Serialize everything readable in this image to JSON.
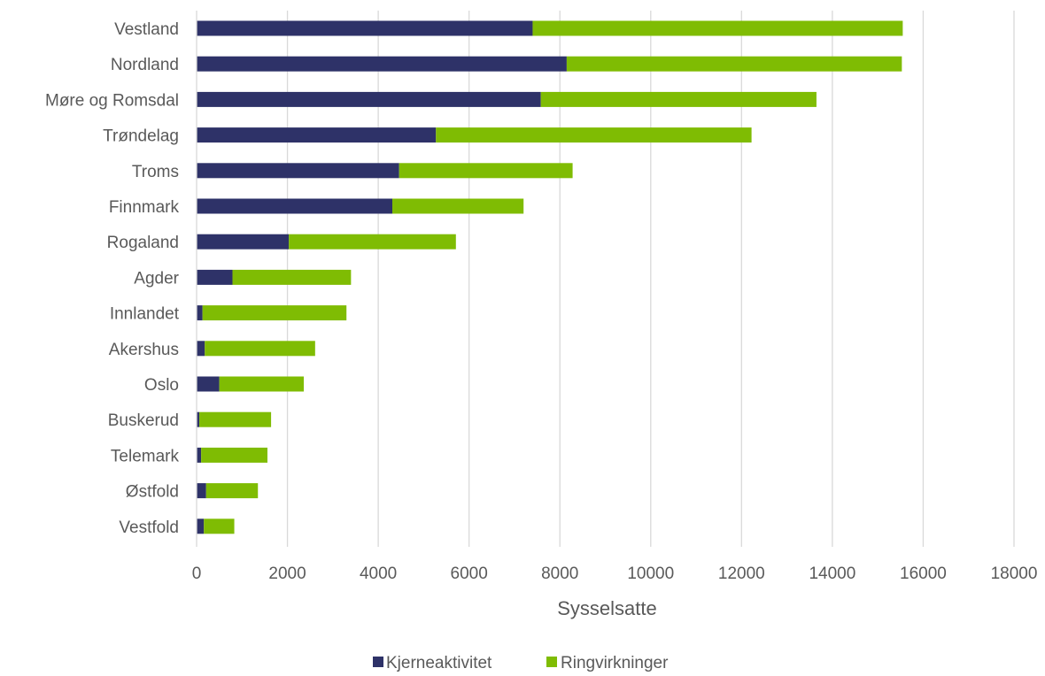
{
  "chart_data": {
    "type": "bar",
    "orientation": "horizontal",
    "stacked": true,
    "categories": [
      "Vestland",
      "Nordland",
      "Møre og Romsdal",
      "Trøndelag",
      "Troms",
      "Finnmark",
      "Rogaland",
      "Agder",
      "Innlandet",
      "Akershus",
      "Oslo",
      "Buskerud",
      "Telemark",
      "Østfold",
      "Vestfold"
    ],
    "series": [
      {
        "name": "Kjerneaktivitet",
        "color": "#2e3268",
        "values": [
          7400,
          8150,
          7580,
          5270,
          4460,
          4310,
          2030,
          790,
          130,
          180,
          500,
          60,
          100,
          210,
          160
        ]
      },
      {
        "name": "Ringvirkninger",
        "color": "#7fbc03",
        "values": [
          8150,
          7380,
          6070,
          6950,
          3820,
          2890,
          3680,
          2610,
          3170,
          2430,
          1860,
          1580,
          1460,
          1140,
          670
        ]
      }
    ],
    "xlabel": "Sysselsatte",
    "xlim": [
      0,
      18000
    ],
    "xticks": [
      0,
      2000,
      4000,
      6000,
      8000,
      10000,
      12000,
      14000,
      16000,
      18000
    ],
    "grid": "vertical",
    "legend_position": "bottom"
  }
}
